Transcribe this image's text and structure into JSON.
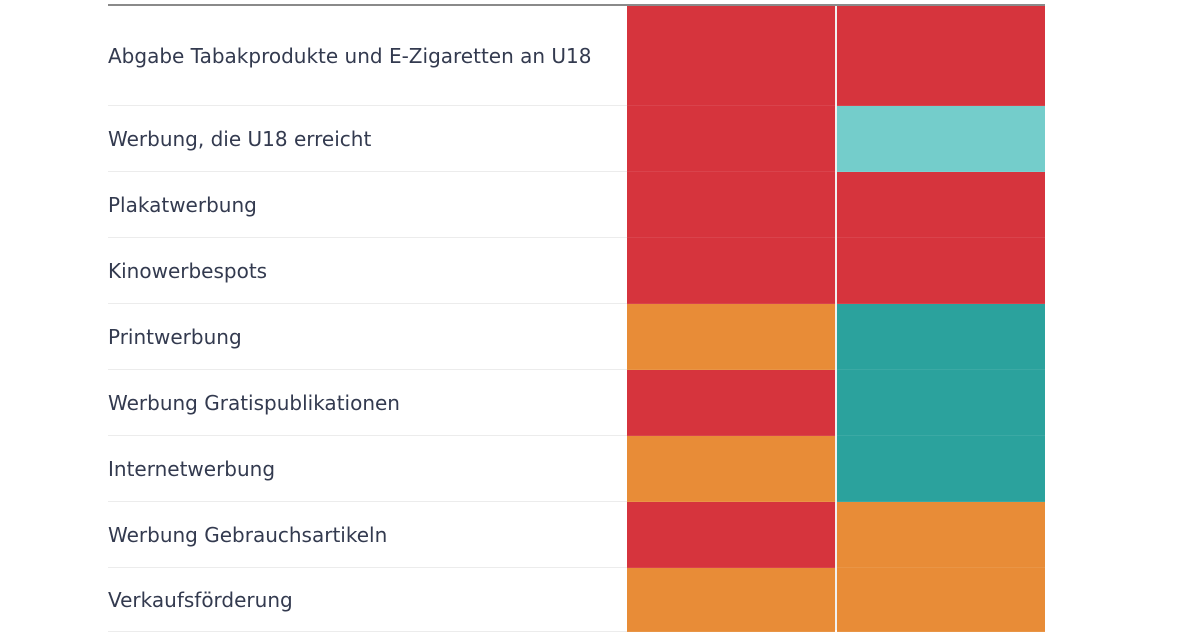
{
  "chart_data": {
    "type": "heatmap",
    "rows": [
      "Abgabe Tabakprodukte und E-Zigaretten an U18",
      "Werbung, die U18 erreicht",
      "Plakatwerbung",
      "Kinowerbespots",
      "Printwerbung",
      "Werbung Gratispublikationen",
      "Internetwerbung",
      "Werbung Gebrauchsartikeln",
      "Verkaufsförderung"
    ],
    "columns": [
      "",
      ""
    ],
    "values": [
      [
        "red",
        "red"
      ],
      [
        "red",
        "light-teal"
      ],
      [
        "red",
        "red"
      ],
      [
        "red",
        "red"
      ],
      [
        "orange",
        "teal"
      ],
      [
        "red",
        "teal"
      ],
      [
        "orange",
        "teal"
      ],
      [
        "red",
        "orange"
      ],
      [
        "orange",
        "orange"
      ]
    ],
    "colors": {
      "red": "#d6343d",
      "orange": "#e88c37",
      "teal": "#2ba29d",
      "light-teal": "#74cdcb"
    },
    "grid": true,
    "legend": "none"
  }
}
